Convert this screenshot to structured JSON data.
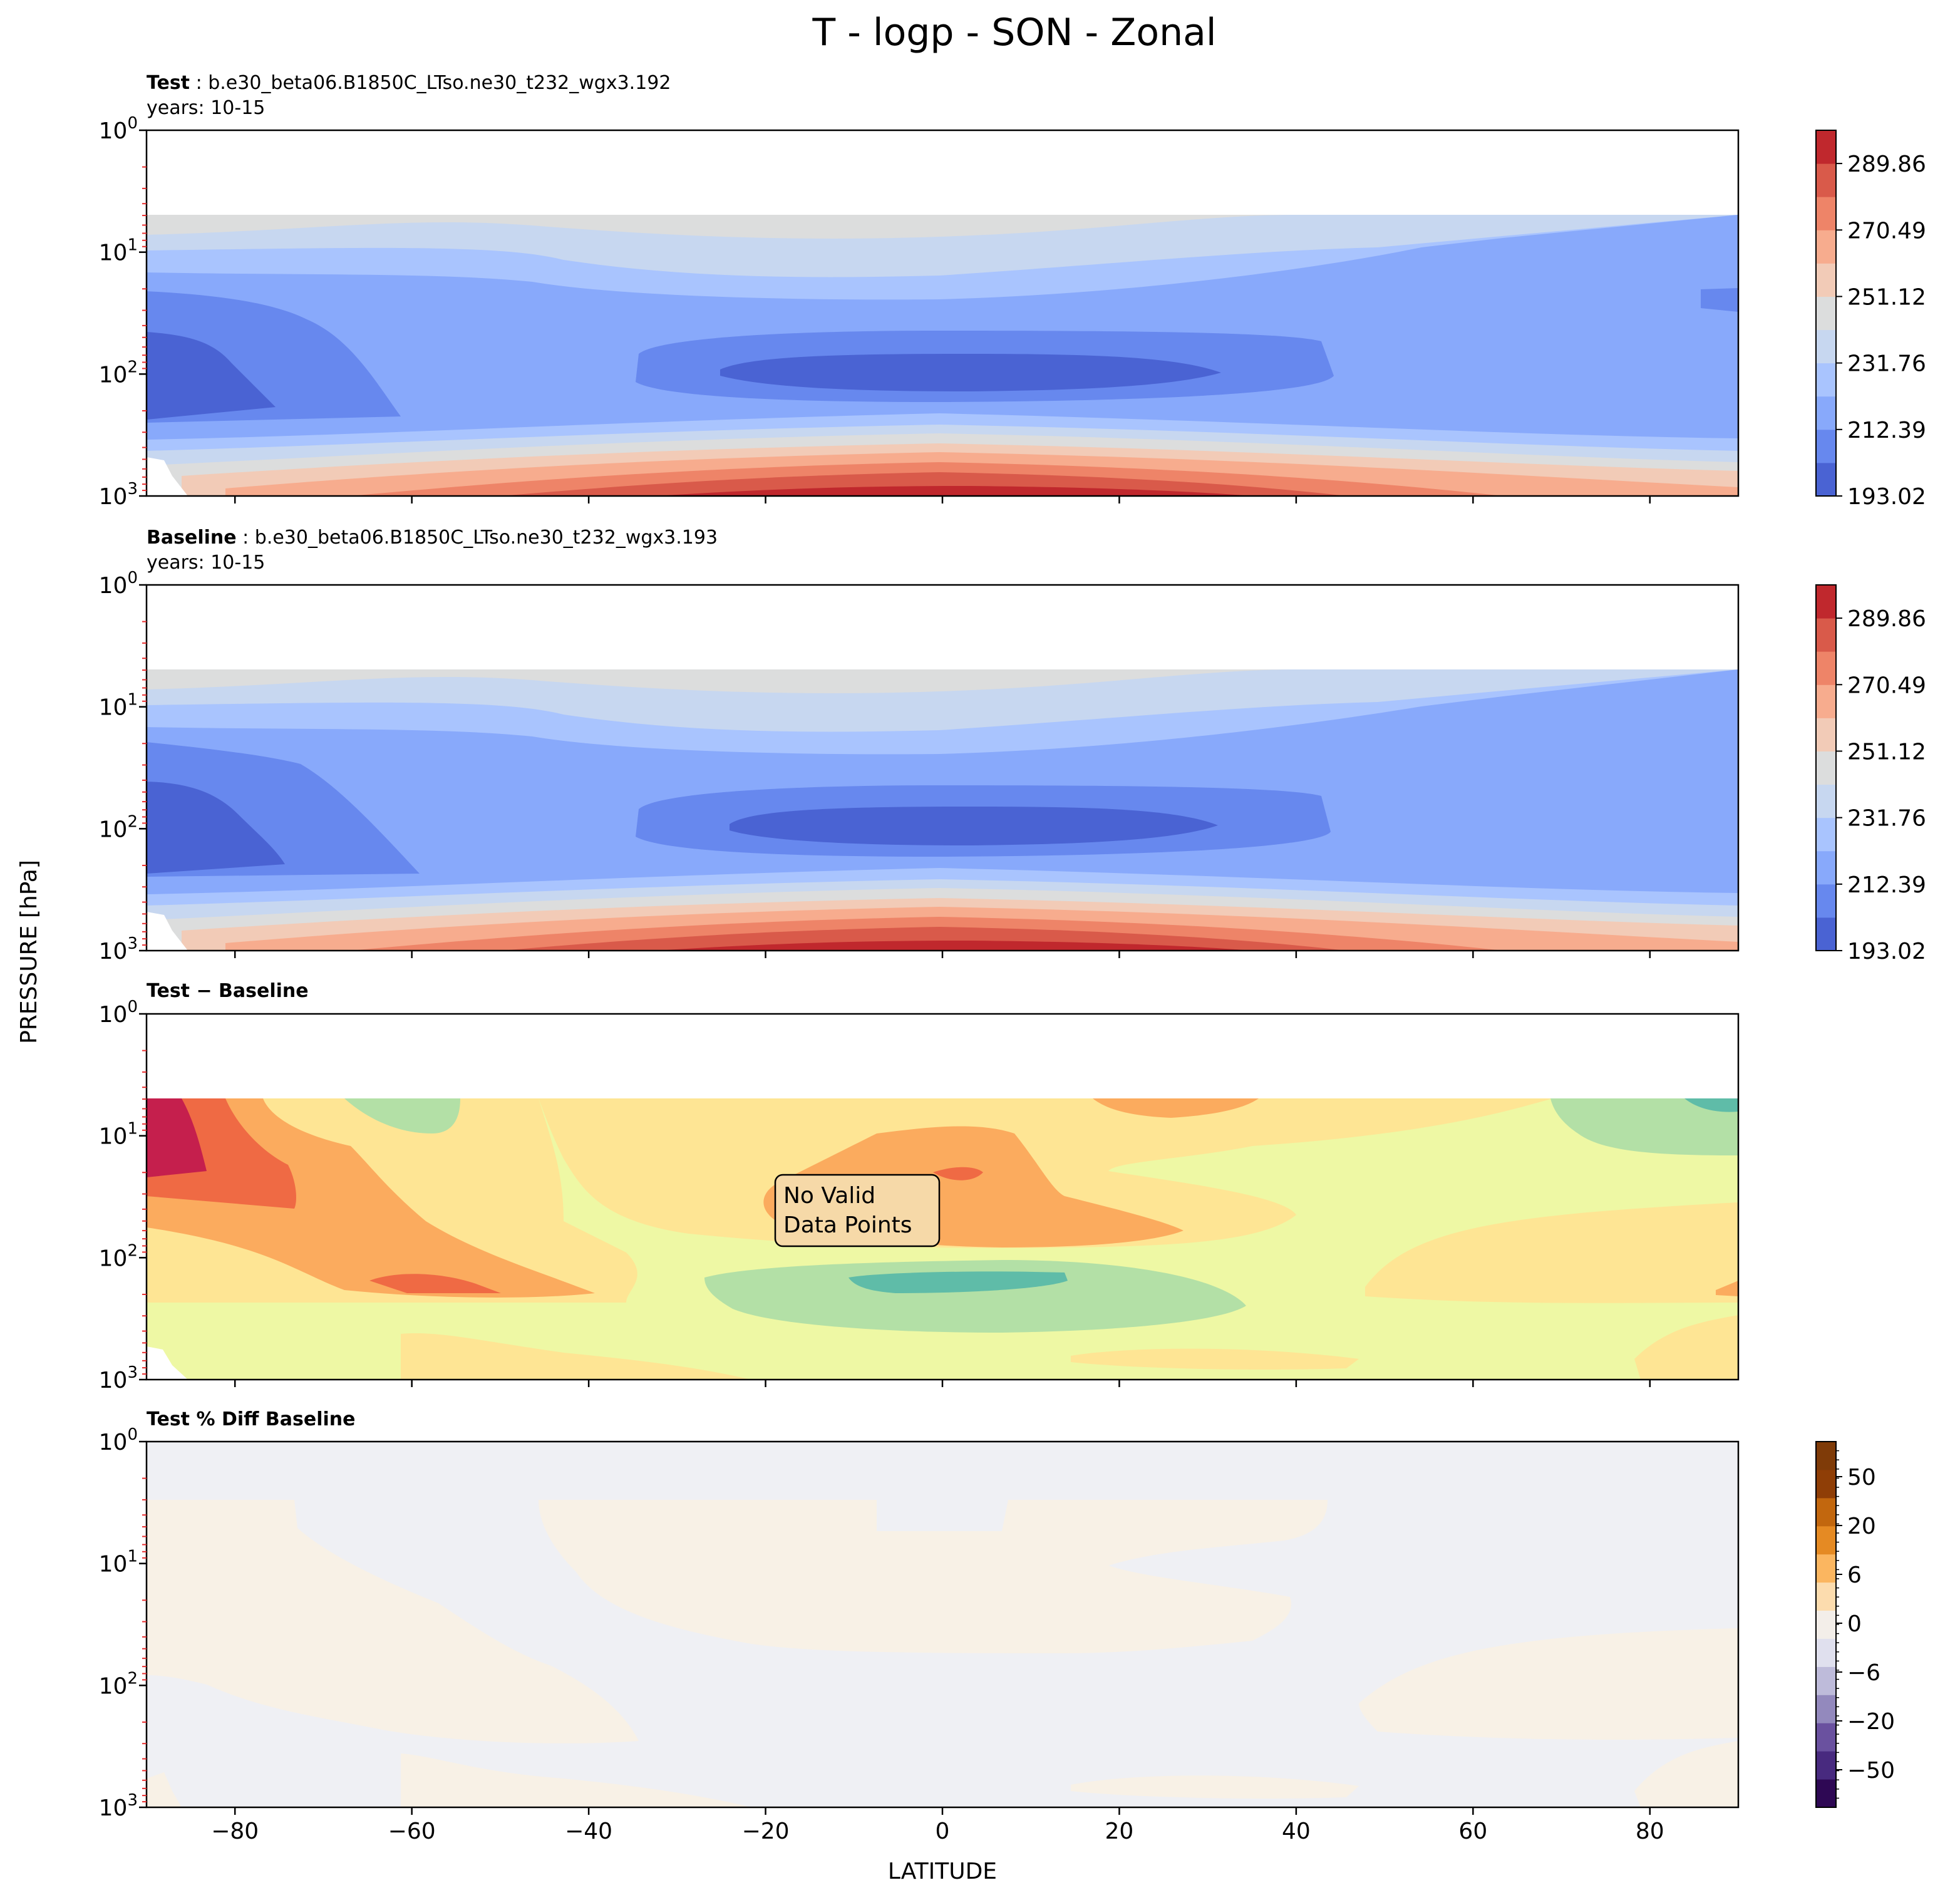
{
  "figure": {
    "title": "T - logp - SON - Zonal",
    "ylabel": "PRESSURE [hPa]",
    "xlabel": "LATITUDE"
  },
  "chart_data": [
    {
      "type": "heatmap",
      "panel": "test",
      "title_bold": "Test",
      "title_rest": " : b.e30_beta06.B1850C_LTso.ne30_t232_wgx3.192",
      "subtitle": "years: 10-15",
      "xlim": [
        -90,
        90
      ],
      "ylim": [
        1000,
        1
      ],
      "yscale": "log",
      "colormap": "coolwarm",
      "colorbar_ticks": [
        "193.02",
        "212.39",
        "231.76",
        "251.12",
        "270.49",
        "289.86"
      ],
      "colorbar_levels": 10
    },
    {
      "type": "heatmap",
      "panel": "baseline",
      "title_bold": "Baseline",
      "title_rest": " : b.e30_beta06.B1850C_LTso.ne30_t232_wgx3.193",
      "subtitle": "years: 10-15",
      "xlim": [
        -90,
        90
      ],
      "ylim": [
        1000,
        1
      ],
      "yscale": "log",
      "colormap": "coolwarm",
      "colorbar_ticks": [
        "193.02",
        "212.39",
        "231.76",
        "251.12",
        "270.49",
        "289.86"
      ],
      "colorbar_levels": 10
    },
    {
      "type": "heatmap",
      "panel": "difference",
      "title_bold": "Test − Baseline",
      "annotation": [
        "No Valid",
        "Data Points"
      ],
      "xlim": [
        -90,
        90
      ],
      "ylim": [
        1000,
        1
      ],
      "yscale": "log",
      "colormap": "Spectral_r"
    },
    {
      "type": "heatmap",
      "panel": "percent-difference",
      "title_bold": "Test % Diff Baseline",
      "xlim": [
        -90,
        90
      ],
      "ylim": [
        1000,
        1
      ],
      "yscale": "log",
      "colormap": "PuOr_r",
      "colorbar_ticks": [
        "50",
        "20",
        "6",
        "0",
        "−6",
        "−20",
        "−50"
      ]
    }
  ],
  "axes": {
    "x_ticks": [
      -80,
      -60,
      -40,
      -20,
      0,
      20,
      40,
      60,
      80
    ],
    "x_tick_labels": [
      "−80",
      "−60",
      "−40",
      "−20",
      "0",
      "20",
      "40",
      "60",
      "80"
    ],
    "y_ticks": [
      1,
      10,
      100,
      1000
    ],
    "y_tick_exponents": [
      "0",
      "1",
      "2",
      "3"
    ]
  },
  "colors": {
    "coolwarm": [
      "#4a63d3",
      "#6788ee",
      "#88a9fb",
      "#a9c4fe",
      "#c7d7f0",
      "#dcdddd",
      "#f2cbb7",
      "#f7ac8e",
      "#ee8468",
      "#d95a4a",
      "#c0282d"
    ],
    "spectral": [
      "#c51f4d",
      "#ef6a44",
      "#fbab5e",
      "#fee594",
      "#eef8a4",
      "#b3e0a6",
      "#5fbca8",
      "#3a8bbd"
    ],
    "puor": [
      "#f8f1e6",
      "#eff0f4"
    ],
    "puor_bar": [
      "#2e0854",
      "#482a7f",
      "#6a519f",
      "#9389bd",
      "#bebbda",
      "#e0e0ee",
      "#f3eee9",
      "#fcdcae",
      "#fbb660",
      "#e58a23",
      "#c2670e",
      "#8f3e06",
      "#7f3b08"
    ],
    "annotation_bg": "#f6d9a8",
    "minor_tick": "#e82c2c"
  }
}
